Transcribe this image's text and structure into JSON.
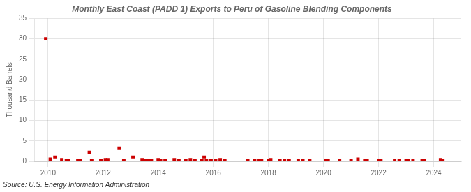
{
  "chart_data": {
    "type": "scatter",
    "title": "Monthly East Coast (PADD 1) Exports to Peru of Gasoline Blending Components",
    "y_label": "Thousand Barrels",
    "annotations": [
      "Source: U.S. Energy Information Administration"
    ],
    "color": "#cc0000",
    "marker": "square",
    "grid": true,
    "xlim": [
      2009.5,
      2025.0
    ],
    "xticks": [
      2010,
      2012,
      2014,
      2016,
      2018,
      2020,
      2022,
      2024
    ],
    "ylim": [
      0,
      35
    ],
    "yticks": [
      0,
      5,
      10,
      15,
      20,
      25,
      30,
      35
    ],
    "x": [
      2009.917,
      2010.083,
      2010.25,
      2010.5,
      2010.667,
      2010.75,
      2011.083,
      2011.167,
      2011.5,
      2011.583,
      2011.917,
      2012.083,
      2012.167,
      2012.583,
      2012.75,
      2013.083,
      2013.417,
      2013.5,
      2013.583,
      2013.667,
      2013.75,
      2014.0,
      2014.083,
      2014.25,
      2014.583,
      2014.75,
      2015.0,
      2015.167,
      2015.333,
      2015.583,
      2015.667,
      2015.75,
      2015.917,
      2016.083,
      2016.25,
      2016.417,
      2017.25,
      2017.5,
      2017.667,
      2017.75,
      2018.0,
      2018.083,
      2018.417,
      2018.583,
      2018.75,
      2019.083,
      2019.25,
      2019.5,
      2020.083,
      2020.167,
      2020.583,
      2021.0,
      2021.25,
      2021.5,
      2021.583,
      2022.0,
      2022.083,
      2022.583,
      2022.75,
      2023.0,
      2023.083,
      2023.25,
      2023.583,
      2023.667,
      2024.25,
      2024.333
    ],
    "values": [
      30.0,
      0.5,
      1.0,
      0.2,
      0.1,
      0.1,
      0.1,
      0.1,
      2.2,
      0.1,
      0.1,
      0.2,
      0.2,
      3.2,
      0.1,
      1.0,
      0.2,
      0.1,
      0.1,
      0.1,
      0.1,
      0.2,
      0.1,
      0.1,
      0.2,
      0.1,
      0.1,
      0.2,
      0.1,
      0.1,
      1.0,
      0.1,
      0.1,
      0.1,
      0.2,
      0.1,
      0.1,
      0.1,
      0.1,
      0.1,
      0.1,
      0.2,
      0.1,
      0.1,
      0.1,
      0.1,
      0.1,
      0.1,
      0.1,
      0.1,
      0.1,
      0.1,
      0.5,
      0.1,
      0.1,
      0.1,
      0.1,
      0.1,
      0.1,
      0.1,
      0.1,
      0.1,
      0.1,
      0.1,
      0.2,
      0.1
    ]
  }
}
